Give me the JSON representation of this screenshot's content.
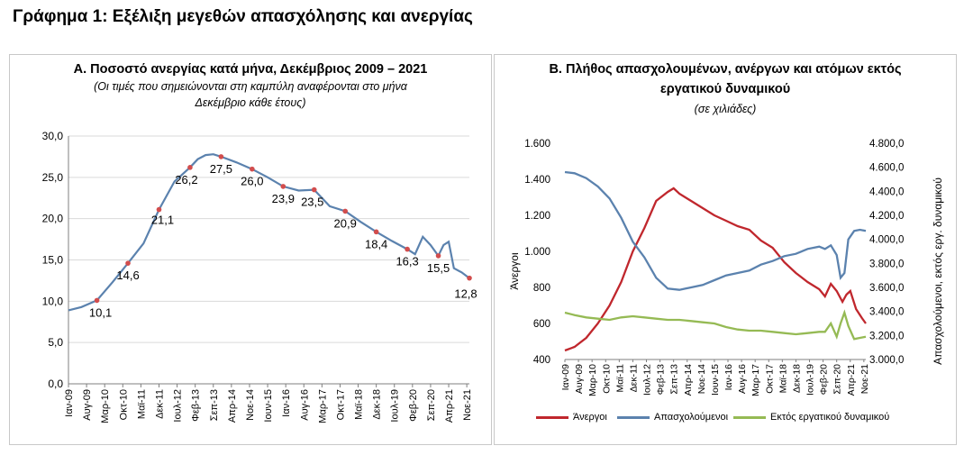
{
  "page_title": "Γράφημα 1: Εξέλιξη μεγεθών απασχόλησης και ανεργίας",
  "colors": {
    "unemployed": "#C0272D",
    "employed": "#5B82AE",
    "inactive": "#95BA54",
    "rate": "#5B82AE",
    "marker": "#D24D4D",
    "axis": "#7f7f7f",
    "grid": "#d9d9d9"
  },
  "panelA": {
    "title": "Α. Ποσοστό ανεργίας κατά μήνα, Δεκέμβριος 2009 – 2021",
    "note_line1": "(Οι τιμές που σημειώνονται στη καμπύλη αναφέρονται στο μήνα",
    "note_line2": "Δεκέμβριο κάθε έτους)"
  },
  "panelB": {
    "title_line1": "Β. Πλήθος απασχολουμένων, ανέργων και ατόμων εκτός",
    "title_line2": "εργατικού δυναμικού",
    "subtitle": "(σε χιλιάδες)",
    "legend": [
      "Άνεργοι",
      "Απασχολούμενοι",
      "Εκτός εργατικού δυναμικού"
    ]
  },
  "chart_data": [
    {
      "type": "line",
      "title": "Α. Ποσοστό ανεργίας κατά μήνα, Δεκέμβριος 2009 – 2021",
      "ylim": [
        0,
        30
      ],
      "yticks": [
        "0,0",
        "5,0",
        "10,0",
        "15,0",
        "20,0",
        "25,0",
        "30,0"
      ],
      "xticks": [
        "Ιαν-09",
        "Αυγ-09",
        "Μαρ-10",
        "Οκτ-10",
        "Μαϊ-11",
        "Δεκ-11",
        "Ιουλ-12",
        "Φεβ-13",
        "Σεπ-13",
        "Απρ-14",
        "Νοε-14",
        "Ιουν-15",
        "Ιαν-16",
        "Αυγ-16",
        "Μαρ-17",
        "Οκτ-17",
        "Μαϊ-18",
        "Δεκ-18",
        "Ιουλ-19",
        "Φεβ-20",
        "Σεπ-20",
        "Απρ-21",
        "Νοε-21"
      ],
      "grid": "horizontal",
      "series": [
        {
          "points": [
            [
              "2009-01",
              8.9
            ],
            [
              "2009-06",
              9.3
            ],
            [
              "2009-12",
              10.1
            ],
            [
              "2010-06",
              12.3
            ],
            [
              "2010-12",
              14.6
            ],
            [
              "2011-06",
              17.0
            ],
            [
              "2011-12",
              21.1
            ],
            [
              "2012-06",
              24.5
            ],
            [
              "2012-12",
              26.2
            ],
            [
              "2013-03",
              27.2
            ],
            [
              "2013-06",
              27.7
            ],
            [
              "2013-09",
              27.8
            ],
            [
              "2013-12",
              27.5
            ],
            [
              "2014-06",
              26.8
            ],
            [
              "2014-12",
              26.0
            ],
            [
              "2015-06",
              25.0
            ],
            [
              "2015-12",
              23.9
            ],
            [
              "2016-06",
              23.4
            ],
            [
              "2016-12",
              23.5
            ],
            [
              "2017-06",
              21.5
            ],
            [
              "2017-12",
              20.9
            ],
            [
              "2018-06",
              19.6
            ],
            [
              "2018-12",
              18.4
            ],
            [
              "2019-06",
              17.3
            ],
            [
              "2019-12",
              16.3
            ],
            [
              "2020-03",
              15.7
            ],
            [
              "2020-06",
              17.8
            ],
            [
              "2020-09",
              16.8
            ],
            [
              "2020-12",
              15.5
            ],
            [
              "2021-02",
              16.8
            ],
            [
              "2021-04",
              17.2
            ],
            [
              "2021-06",
              14.0
            ],
            [
              "2021-09",
              13.5
            ],
            [
              "2021-12",
              12.8
            ]
          ]
        }
      ],
      "annotations": [
        {
          "date": "2009-12",
          "label": "10,1"
        },
        {
          "date": "2010-12",
          "label": "14,6"
        },
        {
          "date": "2011-12",
          "label": "21,1"
        },
        {
          "date": "2012-12",
          "label": "26,2"
        },
        {
          "date": "2013-12",
          "label": "27,5"
        },
        {
          "date": "2014-12",
          "label": "26,0"
        },
        {
          "date": "2015-12",
          "label": "23,9"
        },
        {
          "date": "2016-12",
          "label": "23,5"
        },
        {
          "date": "2017-12",
          "label": "20,9"
        },
        {
          "date": "2018-12",
          "label": "18,4"
        },
        {
          "date": "2019-12",
          "label": "16,3"
        },
        {
          "date": "2020-12",
          "label": "15,5"
        },
        {
          "date": "2021-12",
          "label": "12,8"
        }
      ]
    },
    {
      "type": "line",
      "title": "Β. Πλήθος απασχολουμένων, ανέργων και ατόμων εκτός εργατικού δυναμικού",
      "ylabel_left": "Άνεργοι",
      "ylabel_right": "Απασχολούμενοι, εκτός εργ. δυναμικού",
      "ylim_left": [
        400,
        1600
      ],
      "ylim_right": [
        3000,
        4800
      ],
      "yticks_left": [
        "400",
        "600",
        "800",
        "1.000",
        "1.200",
        "1.400",
        "1.600"
      ],
      "yticks_right": [
        "3.000,0",
        "3.200,0",
        "3.400,0",
        "3.600,0",
        "3.800,0",
        "4.000,0",
        "4.200,0",
        "4.400,0",
        "4.600,0",
        "4.800,0"
      ],
      "xticks": [
        "Ιαν-09",
        "Αυγ-09",
        "Μαρ-10",
        "Οκτ-10",
        "Μαϊ-11",
        "Δεκ-11",
        "Ιουλ-12",
        "Φεβ-13",
        "Σεπ-13",
        "Απρ-14",
        "Νοε-14",
        "Ιουν-15",
        "Ιαν-16",
        "Αυγ-16",
        "Μαρ-17",
        "Οκτ-17",
        "Μαϊ-18",
        "Δεκ-18",
        "Ιουλ-19",
        "Φεβ-20",
        "Σεπ-20",
        "Απρ-21",
        "Νοε-21"
      ],
      "series": [
        {
          "name": "Άνεργοι",
          "axis": "left",
          "points": [
            [
              "2009-01",
              450
            ],
            [
              "2009-06",
              470
            ],
            [
              "2009-12",
              520
            ],
            [
              "2010-06",
              600
            ],
            [
              "2010-12",
              700
            ],
            [
              "2011-06",
              830
            ],
            [
              "2011-12",
              1000
            ],
            [
              "2012-06",
              1130
            ],
            [
              "2012-12",
              1280
            ],
            [
              "2013-06",
              1330
            ],
            [
              "2013-09",
              1350
            ],
            [
              "2013-12",
              1320
            ],
            [
              "2014-06",
              1280
            ],
            [
              "2014-12",
              1240
            ],
            [
              "2015-06",
              1200
            ],
            [
              "2015-12",
              1170
            ],
            [
              "2016-06",
              1140
            ],
            [
              "2016-12",
              1120
            ],
            [
              "2017-06",
              1060
            ],
            [
              "2017-12",
              1020
            ],
            [
              "2018-06",
              940
            ],
            [
              "2018-12",
              880
            ],
            [
              "2019-06",
              830
            ],
            [
              "2019-12",
              790
            ],
            [
              "2020-03",
              750
            ],
            [
              "2020-06",
              820
            ],
            [
              "2020-09",
              780
            ],
            [
              "2020-12",
              720
            ],
            [
              "2021-02",
              760
            ],
            [
              "2021-04",
              780
            ],
            [
              "2021-07",
              680
            ],
            [
              "2021-10",
              630
            ],
            [
              "2021-12",
              600
            ]
          ]
        },
        {
          "name": "Απασχολούμενοι",
          "axis": "right",
          "points": [
            [
              "2009-01",
              4560
            ],
            [
              "2009-06",
              4550
            ],
            [
              "2009-12",
              4510
            ],
            [
              "2010-06",
              4440
            ],
            [
              "2010-12",
              4340
            ],
            [
              "2011-06",
              4180
            ],
            [
              "2011-12",
              3980
            ],
            [
              "2012-06",
              3850
            ],
            [
              "2012-12",
              3680
            ],
            [
              "2013-06",
              3590
            ],
            [
              "2013-12",
              3580
            ],
            [
              "2014-06",
              3600
            ],
            [
              "2014-12",
              3620
            ],
            [
              "2015-06",
              3660
            ],
            [
              "2015-12",
              3700
            ],
            [
              "2016-06",
              3720
            ],
            [
              "2016-12",
              3740
            ],
            [
              "2017-06",
              3790
            ],
            [
              "2017-12",
              3820
            ],
            [
              "2018-06",
              3860
            ],
            [
              "2018-12",
              3880
            ],
            [
              "2019-06",
              3920
            ],
            [
              "2019-12",
              3940
            ],
            [
              "2020-03",
              3920
            ],
            [
              "2020-06",
              3950
            ],
            [
              "2020-09",
              3870
            ],
            [
              "2020-11",
              3680
            ],
            [
              "2021-01",
              3720
            ],
            [
              "2021-03",
              4000
            ],
            [
              "2021-06",
              4070
            ],
            [
              "2021-09",
              4080
            ],
            [
              "2021-12",
              4070
            ]
          ]
        },
        {
          "name": "Εκτός εργατικού δυναμικού",
          "axis": "right",
          "points": [
            [
              "2009-01",
              3390
            ],
            [
              "2009-06",
              3370
            ],
            [
              "2009-12",
              3350
            ],
            [
              "2010-06",
              3340
            ],
            [
              "2010-12",
              3330
            ],
            [
              "2011-06",
              3350
            ],
            [
              "2011-12",
              3360
            ],
            [
              "2012-06",
              3350
            ],
            [
              "2012-12",
              3340
            ],
            [
              "2013-06",
              3330
            ],
            [
              "2013-12",
              3330
            ],
            [
              "2014-06",
              3320
            ],
            [
              "2014-12",
              3310
            ],
            [
              "2015-06",
              3300
            ],
            [
              "2015-12",
              3270
            ],
            [
              "2016-06",
              3250
            ],
            [
              "2016-12",
              3240
            ],
            [
              "2017-06",
              3240
            ],
            [
              "2017-12",
              3230
            ],
            [
              "2018-06",
              3220
            ],
            [
              "2018-12",
              3210
            ],
            [
              "2019-06",
              3220
            ],
            [
              "2019-12",
              3230
            ],
            [
              "2020-03",
              3230
            ],
            [
              "2020-06",
              3300
            ],
            [
              "2020-09",
              3190
            ],
            [
              "2020-11",
              3300
            ],
            [
              "2021-01",
              3390
            ],
            [
              "2021-03",
              3280
            ],
            [
              "2021-06",
              3170
            ],
            [
              "2021-09",
              3180
            ],
            [
              "2021-12",
              3190
            ]
          ]
        }
      ],
      "legend_position": "bottom"
    }
  ]
}
